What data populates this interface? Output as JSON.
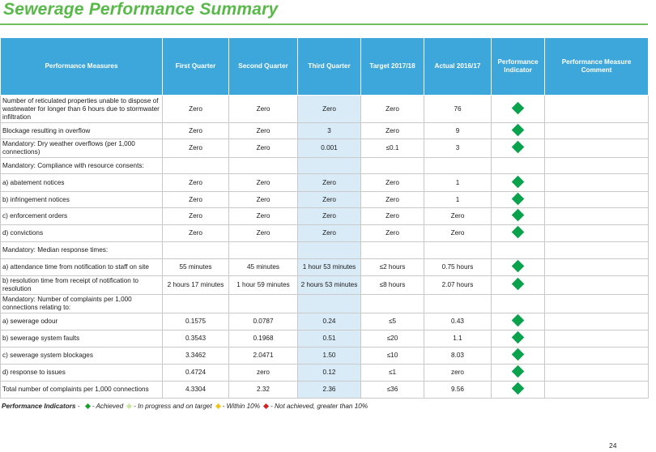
{
  "title": "Sewerage Performance Summary",
  "headers": {
    "measure": "Performance Measures",
    "q1": "First Quarter",
    "q2": "Second Quarter",
    "q3": "Third Quarter",
    "target": "Target 2017/18",
    "actual": "Actual 2016/17",
    "indicator": "Performance Indicator",
    "comment": "Performance Measure Comment"
  },
  "rows": [
    {
      "measure": "Number of reticulated properties unable to dispose of wastewater for longer than 6 hours due to stormwater infiltration",
      "q1": "Zero",
      "q2": "Zero",
      "q3": "Zero",
      "target": "Zero",
      "actual": "76",
      "indicator": "achieved",
      "comment": ""
    },
    {
      "measure": "Blockage resulting in overflow",
      "q1": "Zero",
      "q2": "Zero",
      "q3": "3",
      "target": "Zero",
      "actual": "9",
      "indicator": "achieved",
      "comment": ""
    },
    {
      "measure": "Mandatory: Dry weather overflows (per 1,000 connections)",
      "q1": "Zero",
      "q2": "Zero",
      "q3": "0.001",
      "target": "≤0.1",
      "actual": "3",
      "indicator": "achieved",
      "comment": ""
    },
    {
      "measure": "Mandatory: Compliance with resource consents:",
      "q1": "",
      "q2": "",
      "q3": "",
      "target": "",
      "actual": "",
      "indicator": "",
      "comment": ""
    },
    {
      "measure": "a) abatement notices",
      "q1": "Zero",
      "q2": "Zero",
      "q3": "Zero",
      "target": "Zero",
      "actual": "1",
      "indicator": "achieved",
      "comment": ""
    },
    {
      "measure": "b) infringement notices",
      "q1": "Zero",
      "q2": "Zero",
      "q3": "Zero",
      "target": "Zero",
      "actual": "1",
      "indicator": "achieved",
      "comment": ""
    },
    {
      "measure": "c) enforcement orders",
      "q1": "Zero",
      "q2": "Zero",
      "q3": "Zero",
      "target": "Zero",
      "actual": "Zero",
      "indicator": "achieved",
      "comment": ""
    },
    {
      "measure": "d) convictions",
      "q1": "Zero",
      "q2": "Zero",
      "q3": "Zero",
      "target": "Zero",
      "actual": "Zero",
      "indicator": "achieved",
      "comment": ""
    },
    {
      "measure": "Mandatory: Median response times:",
      "q1": "",
      "q2": "",
      "q3": "",
      "target": "",
      "actual": "",
      "indicator": "",
      "comment": ""
    },
    {
      "measure": "a) attendance time from notification to staff on site",
      "q1": "55 minutes",
      "q2": "45 minutes",
      "q3": "1 hour 53 minutes",
      "target": "≤2 hours",
      "actual": "0.75 hours",
      "indicator": "achieved",
      "comment": ""
    },
    {
      "measure": "b) resolution time from receipt of notification to resolution",
      "q1": "2 hours 17 minutes",
      "q2": "1 hour 59 minutes",
      "q3": "2 hours 53 minutes",
      "target": "≤8 hours",
      "actual": "2.07 hours",
      "indicator": "achieved",
      "comment": ""
    },
    {
      "measure": "Mandatory: Number of complaints per 1,000 connections relating to:",
      "q1": "",
      "q2": "",
      "q3": "",
      "target": "",
      "actual": "",
      "indicator": "",
      "comment": ""
    },
    {
      "measure": "a) sewerage odour",
      "q1": "0.1575",
      "q2": "0.0787",
      "q3": "0.24",
      "target": "≤5",
      "actual": "0.43",
      "indicator": "achieved",
      "comment": ""
    },
    {
      "measure": "b) sewerage system faults",
      "q1": "0.3543",
      "q2": "0.1968",
      "q3": "0.51",
      "target": "≤20",
      "actual": "1.1",
      "indicator": "achieved",
      "comment": ""
    },
    {
      "measure": "c) sewerage system blockages",
      "q1": "3.3462",
      "q2": "2.0471",
      "q3": "1.50",
      "target": "≤10",
      "actual": "8.03",
      "indicator": "achieved",
      "comment": ""
    },
    {
      "measure": "d) response to issues",
      "q1": "0.4724",
      "q2": "zero",
      "q3": "0.12",
      "target": "≤1",
      "actual": "zero",
      "indicator": "achieved",
      "comment": ""
    },
    {
      "measure": "Total number of complaints per 1,000 connections",
      "q1": "4.3304",
      "q2": "2.32",
      "q3": "2.36",
      "target": "≤36",
      "actual": "9.56",
      "indicator": "achieved",
      "comment": ""
    }
  ],
  "row_heights": [
    34,
    20,
    21,
    20,
    22,
    20,
    21,
    21,
    21,
    21,
    21,
    23,
    21,
    21,
    21,
    21,
    21
  ],
  "legend": {
    "lead": "Performance Indicators",
    "sep": " - ",
    "items": [
      {
        "label": "- Achieved",
        "color": "#1a9e2a"
      },
      {
        "label": "- In progress and on target",
        "color": "#c8e6a0"
      },
      {
        "label": "- Within 10%",
        "color": "#f0c419"
      },
      {
        "label": "- Not achieved, greater than 10%",
        "color": "#d62020"
      }
    ]
  },
  "indicator_colors": {
    "achieved": "#0aa24d"
  },
  "page_number": "24"
}
